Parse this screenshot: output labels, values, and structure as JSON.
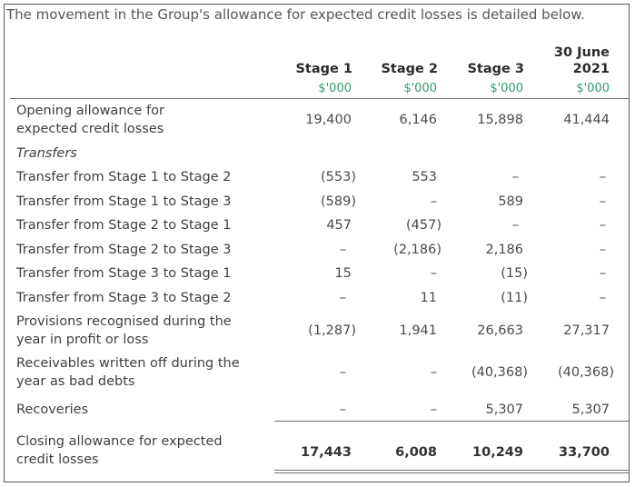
{
  "intro": "The movement in the Group's allowance for expected credit losses is detailed below.",
  "columns": [
    {
      "title_line1": "",
      "title_line2": "Stage 1",
      "unit": "$'000"
    },
    {
      "title_line1": "",
      "title_line2": "Stage 2",
      "unit": "$'000"
    },
    {
      "title_line1": "",
      "title_line2": "Stage 3",
      "unit": "$'000"
    },
    {
      "title_line1": "30 June",
      "title_line2": "2021",
      "unit": "$'000"
    }
  ],
  "rows": [
    {
      "label_line1": "Opening allowance for",
      "label_line2": "expected credit losses",
      "values": [
        "19,400",
        "6,146",
        "15,898",
        "41,444"
      ]
    },
    {
      "label_line1": "Transfers",
      "label_line2": "",
      "values": [
        "",
        "",
        "",
        ""
      ]
    },
    {
      "label_line1": "Transfer from Stage 1 to Stage 2",
      "label_line2": "",
      "values": [
        "(553)",
        "553",
        "–",
        "–"
      ]
    },
    {
      "label_line1": "Transfer from Stage 1 to Stage 3",
      "label_line2": "",
      "values": [
        "(589)",
        "–",
        "589",
        "–"
      ]
    },
    {
      "label_line1": "Transfer from Stage 2 to Stage 1",
      "label_line2": "",
      "values": [
        "457",
        "(457)",
        "–",
        "–"
      ]
    },
    {
      "label_line1": "Transfer from Stage 2 to Stage 3",
      "label_line2": "",
      "values": [
        "–",
        "(2,186)",
        "2,186",
        "–"
      ]
    },
    {
      "label_line1": "Transfer from Stage 3 to Stage 1",
      "label_line2": "",
      "values": [
        "15",
        "–",
        "(15)",
        "–"
      ]
    },
    {
      "label_line1": "Transfer from Stage 3 to Stage 2",
      "label_line2": "",
      "values": [
        "–",
        "11",
        "(11)",
        "–"
      ]
    },
    {
      "label_line1": "Provisions recognised during the",
      "label_line2": "year in profit or loss",
      "values": [
        "(1,287)",
        "1,941",
        "26,663",
        "27,317"
      ]
    },
    {
      "label_line1": "Receivables written off during the",
      "label_line2": "year as bad debts",
      "values": [
        "–",
        "–",
        "(40,368)",
        "(40,368)"
      ]
    },
    {
      "label_line1": "Recoveries",
      "label_line2": "",
      "values": [
        "–",
        "–",
        "5,307",
        "5,307"
      ]
    },
    {
      "label_line1": "Closing allowance for expected",
      "label_line2": "credit losses",
      "values": [
        "17,443",
        "6,008",
        "10,249",
        "33,700"
      ]
    }
  ]
}
